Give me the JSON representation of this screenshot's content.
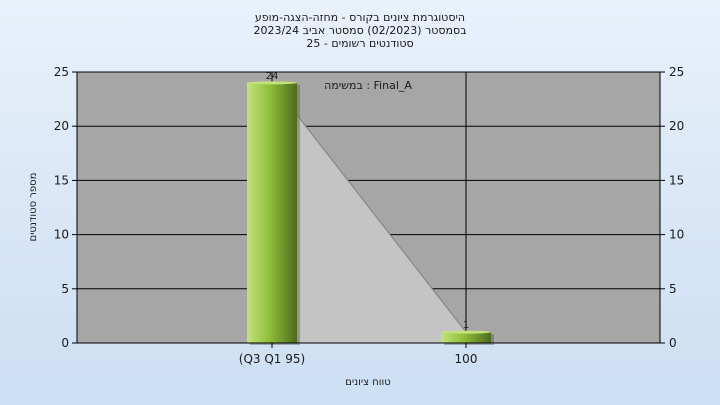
{
  "chart_data": {
    "type": "bar",
    "title_lines": [
      "היסטוגרמת ציונים בקורס - מחזה-הצגה-מופע",
      "בסמסטר  (02/2023)  סמסטר אביב 2023/24",
      "סטודנטים רשומים - 25"
    ],
    "annotation": "במשימה : Final_A",
    "categories": [
      "(Q3 Q1 95)",
      "100"
    ],
    "values": [
      24,
      1
    ],
    "data_labels": [
      "24",
      "1"
    ],
    "xlabel": "טווח ציונים",
    "ylabel": "מספר סטודנטים",
    "ylim": [
      0,
      25
    ],
    "yticks": [
      0,
      5,
      10,
      15,
      20,
      25
    ],
    "right_axis": true,
    "grid": true,
    "colors": {
      "plot_bg": "#a6a6a6",
      "area_fill": "#c4c4c4",
      "bar_light": "#c2e27a",
      "bar_mid": "#8fbf3a",
      "bar_dark": "#4d6b1d",
      "grid": "#000000"
    }
  }
}
